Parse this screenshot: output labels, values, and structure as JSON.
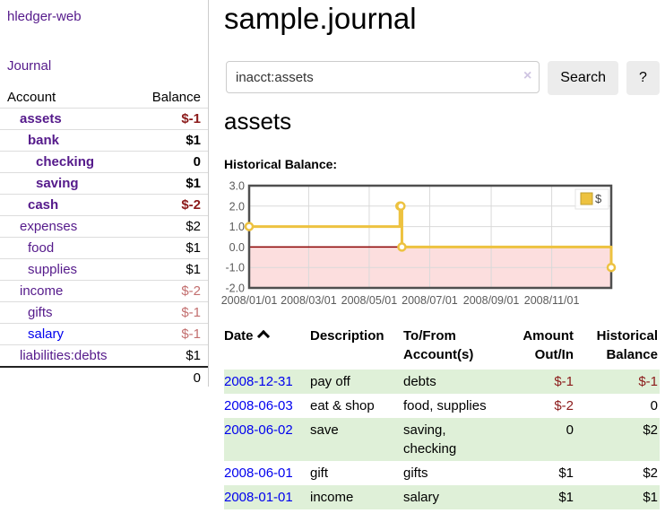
{
  "app": {
    "title": "hledger-web"
  },
  "sidebar": {
    "journal_link": "Journal",
    "table": {
      "headers": {
        "account": "Account",
        "balance": "Balance"
      },
      "rows": [
        {
          "name": "assets",
          "balance": "$-1",
          "level": 1,
          "bold": true,
          "balance_style": "negative",
          "link_style": "visited"
        },
        {
          "name": "bank",
          "balance": "$1",
          "level": 2,
          "bold": true,
          "balance_style": "normal",
          "link_style": "visited"
        },
        {
          "name": "checking",
          "balance": "0",
          "level": 3,
          "bold": true,
          "balance_style": "normal",
          "link_style": "visited"
        },
        {
          "name": "saving",
          "balance": "$1",
          "level": 3,
          "bold": true,
          "balance_style": "normal",
          "link_style": "visited"
        },
        {
          "name": "cash",
          "balance": "$-2",
          "level": 2,
          "bold": true,
          "balance_style": "negative",
          "link_style": "visited"
        },
        {
          "name": "expenses",
          "balance": "$2",
          "level": 1,
          "bold": false,
          "balance_style": "normal",
          "link_style": "visited"
        },
        {
          "name": "food",
          "balance": "$1",
          "level": 2,
          "bold": false,
          "balance_style": "normal",
          "link_style": "visited"
        },
        {
          "name": "supplies",
          "balance": "$1",
          "level": 2,
          "bold": false,
          "balance_style": "normal",
          "link_style": "visited"
        },
        {
          "name": "income",
          "balance": "$-2",
          "level": 1,
          "bold": false,
          "balance_style": "negative-dim",
          "link_style": "visited"
        },
        {
          "name": "gifts",
          "balance": "$-1",
          "level": 2,
          "bold": false,
          "balance_style": "negative-dim",
          "link_style": "visited"
        },
        {
          "name": "salary",
          "balance": "$-1",
          "level": 2,
          "bold": false,
          "balance_style": "negative-dim",
          "link_style": "unvisited"
        },
        {
          "name": "liabilities:debts",
          "balance": "$1",
          "level": 1,
          "bold": false,
          "balance_style": "normal",
          "link_style": "visited"
        }
      ],
      "total": "0"
    }
  },
  "header": {
    "title": "sample.journal"
  },
  "search": {
    "value": "inacct:assets",
    "clear_icon": "×",
    "button_label": "Search",
    "help_label": "?"
  },
  "account_page": {
    "title": "assets",
    "chart_label": "Historical Balance:"
  },
  "chart_data": {
    "type": "line",
    "style": "step",
    "title": "Historical Balance:",
    "series": [
      {
        "name": "$",
        "color": "#edc240",
        "points": [
          [
            "2008-01-01",
            1
          ],
          [
            "2008-06-01",
            2
          ],
          [
            "2008-06-02",
            2
          ],
          [
            "2008-06-03",
            0
          ],
          [
            "2008-12-31",
            -1
          ]
        ]
      }
    ],
    "x_range": [
      "2008-01-01",
      "2008-12-31"
    ],
    "x_ticks": [
      "2008/01/01",
      "2008/03/01",
      "2008/05/01",
      "2008/07/01",
      "2008/09/01",
      "2008/11/01"
    ],
    "y_ticks": [
      "3.0",
      "2.0",
      "1.0",
      "0.0",
      "-1.0",
      "-2.0"
    ],
    "ylim": [
      -2,
      3
    ],
    "grid": true,
    "legend_position": "top-right",
    "legend": "$",
    "negative_region_color": "#fcdede",
    "zero_line_color": "#8b0000"
  },
  "transactions": {
    "headers": {
      "date": "Date",
      "sort_icon": "chevron-up",
      "description": "Description",
      "accounts": "To/From Account(s)",
      "amount": "Amount Out/In",
      "balance": "Historical Balance"
    },
    "rows": [
      {
        "date": "2008-12-31",
        "description": "pay off",
        "accounts": "debts",
        "amount": "$-1",
        "balance": "$-1",
        "amount_negative": true,
        "balance_negative": true,
        "shaded": true
      },
      {
        "date": "2008-06-03",
        "description": "eat & shop",
        "accounts": "food, supplies",
        "amount": "$-2",
        "balance": "0",
        "amount_negative": true,
        "balance_negative": false,
        "shaded": false
      },
      {
        "date": "2008-06-02",
        "description": "save",
        "accounts": "saving, checking",
        "amount": "0",
        "balance": "$2",
        "amount_negative": false,
        "balance_negative": false,
        "shaded": true
      },
      {
        "date": "2008-06-01",
        "description": "gift",
        "accounts": "gifts",
        "amount": "$1",
        "balance": "$2",
        "amount_negative": false,
        "balance_negative": false,
        "shaded": false
      },
      {
        "date": "2008-01-01",
        "description": "income",
        "accounts": "salary",
        "amount": "$1",
        "balance": "$1",
        "amount_negative": false,
        "balance_negative": false,
        "shaded": true
      }
    ]
  }
}
